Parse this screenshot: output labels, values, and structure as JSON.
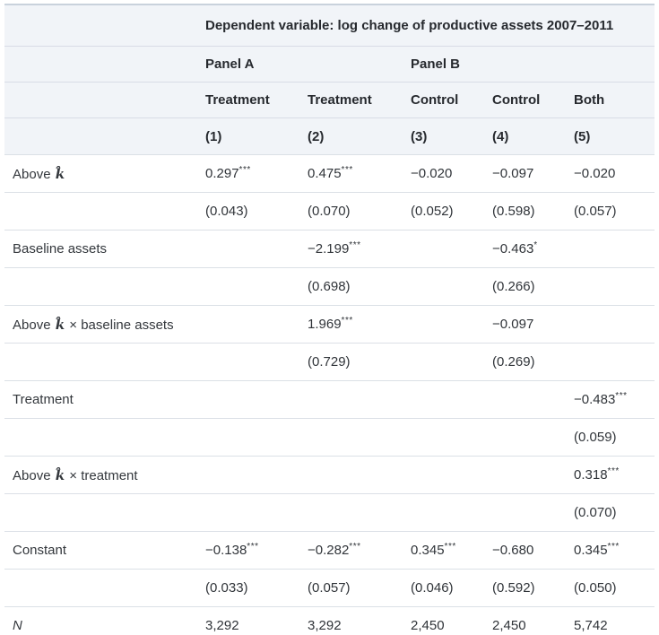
{
  "table": {
    "title": "Dependent variable: log change of productive assets 2007–2011",
    "panels": {
      "a": "Panel A",
      "b": "Panel B"
    },
    "columns": [
      "Treatment",
      "Treatment",
      "Control",
      "Control",
      "Both"
    ],
    "column_numbers": [
      "(1)",
      "(2)",
      "(3)",
      "(4)",
      "(5)"
    ],
    "rows": [
      {
        "name": "row-above-k-coef",
        "label": {
          "pre": "Above ",
          "math": "k̂",
          "post": ""
        },
        "cells": [
          "0.297***",
          "0.475***",
          "−0.020",
          "−0.097",
          "−0.020"
        ]
      },
      {
        "name": "row-above-k-se",
        "cells": [
          "(0.043)",
          "(0.070)",
          "(0.052)",
          "(0.598)",
          "(0.057)"
        ]
      },
      {
        "name": "row-baseline-assets-coef",
        "label": {
          "pre": "Baseline assets"
        },
        "cells": [
          "",
          "−2.199***",
          "",
          "−0.463*",
          ""
        ]
      },
      {
        "name": "row-baseline-assets-se",
        "cells": [
          "",
          "(0.698)",
          "",
          "(0.266)",
          ""
        ]
      },
      {
        "name": "row-above-k-x-baseline-coef",
        "label": {
          "pre": "Above ",
          "math": "k̂",
          "post": " × baseline assets"
        },
        "cells": [
          "",
          "1.969***",
          "",
          "−0.097",
          ""
        ]
      },
      {
        "name": "row-above-k-x-baseline-se",
        "cells": [
          "",
          "(0.729)",
          "",
          "(0.269)",
          ""
        ]
      },
      {
        "name": "row-treatment-coef",
        "label": {
          "pre": "Treatment"
        },
        "cells": [
          "",
          "",
          "",
          "",
          "−0.483***"
        ]
      },
      {
        "name": "row-treatment-se",
        "cells": [
          "",
          "",
          "",
          "",
          "(0.059)"
        ]
      },
      {
        "name": "row-above-k-x-treatment-coef",
        "label": {
          "pre": "Above ",
          "math": "k̂",
          "post": " × treatment"
        },
        "cells": [
          "",
          "",
          "",
          "",
          "0.318***"
        ]
      },
      {
        "name": "row-above-k-x-treatment-se",
        "cells": [
          "",
          "",
          "",
          "",
          "(0.070)"
        ]
      },
      {
        "name": "row-constant-coef",
        "label": {
          "pre": "Constant"
        },
        "cells": [
          "−0.138***",
          "−0.282***",
          "0.345***",
          "−0.680",
          "0.345***"
        ]
      },
      {
        "name": "row-constant-se",
        "cells": [
          "(0.033)",
          "(0.057)",
          "(0.046)",
          "(0.592)",
          "(0.050)"
        ]
      },
      {
        "name": "row-n-observations",
        "label": {
          "pre": "N"
        },
        "label_italic": true,
        "cells": [
          "3,292",
          "3,292",
          "2,450",
          "2,450",
          "5,742"
        ]
      }
    ],
    "colors": {
      "header_background": "#f1f4f8",
      "top_border": "#c9d2dc",
      "row_separator": "#dbe0e6",
      "heading_text": "#26292e",
      "body_text": "#33373c"
    }
  }
}
